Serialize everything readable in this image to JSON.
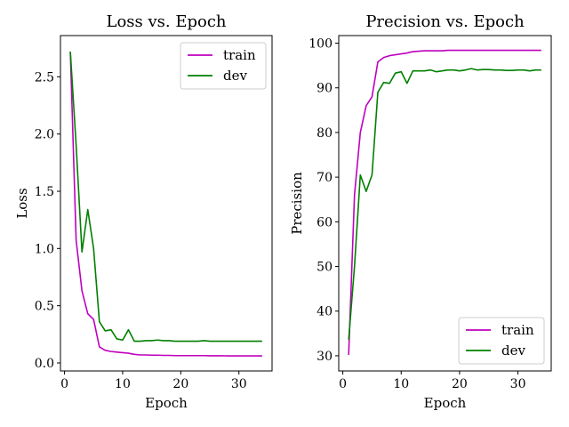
{
  "chart_data": [
    {
      "type": "line",
      "title": "Loss vs. Epoch",
      "xlabel": "Epoch",
      "ylabel": "Loss",
      "xlim": [
        -0.7,
        35.7
      ],
      "ylim": [
        -0.07,
        2.86
      ],
      "xticks": [
        0,
        10,
        20,
        30
      ],
      "yticks": [
        0.0,
        0.5,
        1.0,
        1.5,
        2.0,
        2.5
      ],
      "ytick_labels": [
        "0.0",
        "0.5",
        "1.0",
        "1.5",
        "2.0",
        "2.5"
      ],
      "legend_position": "top-right",
      "x": [
        1,
        2,
        3,
        4,
        5,
        6,
        7,
        8,
        9,
        10,
        11,
        12,
        13,
        14,
        15,
        16,
        17,
        18,
        19,
        20,
        21,
        22,
        23,
        24,
        25,
        26,
        27,
        28,
        29,
        30,
        31,
        32,
        33,
        34
      ],
      "series": [
        {
          "name": "train",
          "color": "#bf00bf",
          "values": [
            2.72,
            1.07,
            0.63,
            0.43,
            0.38,
            0.14,
            0.11,
            0.1,
            0.095,
            0.09,
            0.085,
            0.075,
            0.07,
            0.07,
            0.068,
            0.068,
            0.066,
            0.066,
            0.064,
            0.064,
            0.064,
            0.064,
            0.064,
            0.064,
            0.063,
            0.063,
            0.063,
            0.062,
            0.062,
            0.062,
            0.062,
            0.062,
            0.062,
            0.062
          ]
        },
        {
          "name": "dev",
          "color": "#008000",
          "values": [
            2.72,
            1.9,
            0.97,
            1.34,
            1.0,
            0.36,
            0.28,
            0.29,
            0.21,
            0.2,
            0.29,
            0.19,
            0.19,
            0.195,
            0.195,
            0.2,
            0.195,
            0.195,
            0.19,
            0.19,
            0.19,
            0.19,
            0.19,
            0.195,
            0.19,
            0.19,
            0.19,
            0.19,
            0.19,
            0.19,
            0.19,
            0.19,
            0.19,
            0.19
          ]
        }
      ]
    },
    {
      "type": "line",
      "title": "Precision vs. Epoch",
      "xlabel": "Epoch",
      "ylabel": "Precision",
      "xlim": [
        -0.7,
        35.7
      ],
      "ylim": [
        26.6,
        101.7
      ],
      "xticks": [
        0,
        10,
        20,
        30
      ],
      "yticks": [
        30,
        40,
        50,
        60,
        70,
        80,
        90,
        100
      ],
      "ytick_labels": [
        "30",
        "40",
        "50",
        "60",
        "70",
        "80",
        "90",
        "100"
      ],
      "legend_position": "bottom-right",
      "x": [
        1,
        2,
        3,
        4,
        5,
        6,
        7,
        8,
        9,
        10,
        11,
        12,
        13,
        14,
        15,
        16,
        17,
        18,
        19,
        20,
        21,
        22,
        23,
        24,
        25,
        26,
        27,
        28,
        29,
        30,
        31,
        32,
        33,
        34
      ],
      "series": [
        {
          "name": "train",
          "color": "#bf00bf",
          "values": [
            30.2,
            66.0,
            80.0,
            86.0,
            88.0,
            95.8,
            96.8,
            97.2,
            97.4,
            97.6,
            97.8,
            98.1,
            98.2,
            98.3,
            98.3,
            98.3,
            98.3,
            98.4,
            98.4,
            98.4,
            98.4,
            98.4,
            98.4,
            98.4,
            98.4,
            98.4,
            98.4,
            98.4,
            98.4,
            98.4,
            98.4,
            98.4,
            98.4,
            98.4
          ]
        },
        {
          "name": "dev",
          "color": "#008000",
          "values": [
            33.6,
            50.0,
            70.5,
            66.8,
            70.5,
            89.0,
            91.2,
            91.0,
            93.3,
            93.6,
            91.0,
            93.8,
            93.8,
            93.8,
            94.0,
            93.6,
            93.8,
            94.0,
            94.0,
            93.8,
            94.0,
            94.3,
            94.0,
            94.1,
            94.1,
            94.0,
            94.0,
            93.9,
            93.9,
            94.0,
            94.0,
            93.8,
            94.0,
            94.0
          ]
        }
      ]
    }
  ]
}
